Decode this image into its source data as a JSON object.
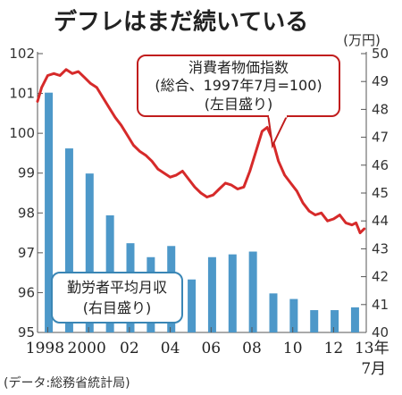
{
  "chart_data": {
    "type": "bar+line",
    "title": "デフレはまだ続いている",
    "right_unit": "(万円)",
    "source": "(データ:総務省統計局)",
    "x_tick_labels": [
      "1998",
      "2000",
      "02",
      "04",
      "06",
      "08",
      "10",
      "12",
      "13年",
      "7月"
    ],
    "left_axis": {
      "min": 95,
      "max": 102,
      "ticks": [
        95,
        96,
        97,
        98,
        99,
        100,
        101,
        102
      ]
    },
    "right_axis": {
      "min": 40,
      "max": 50,
      "ticks": [
        40,
        41,
        42,
        43,
        44,
        45,
        46,
        47,
        48,
        49,
        50
      ]
    },
    "line_series": {
      "name_lines": [
        "消費者物価指数",
        "(総合、1997年7月=100)",
        "(左目盛り)"
      ],
      "color": "#d62a2a",
      "axis": "left",
      "points": [
        [
          1997.5,
          100.8
        ],
        [
          1997.7,
          101.15
        ],
        [
          1998.0,
          101.45
        ],
        [
          1998.3,
          101.5
        ],
        [
          1998.6,
          101.45
        ],
        [
          1998.9,
          101.6
        ],
        [
          1999.2,
          101.5
        ],
        [
          1999.5,
          101.55
        ],
        [
          1999.8,
          101.4
        ],
        [
          2000.1,
          101.25
        ],
        [
          2000.4,
          101.15
        ],
        [
          2000.7,
          100.9
        ],
        [
          2001.0,
          100.65
        ],
        [
          2001.3,
          100.4
        ],
        [
          2001.6,
          100.2
        ],
        [
          2001.9,
          99.95
        ],
        [
          2002.2,
          99.7
        ],
        [
          2002.5,
          99.55
        ],
        [
          2002.8,
          99.45
        ],
        [
          2003.1,
          99.3
        ],
        [
          2003.4,
          99.1
        ],
        [
          2003.7,
          99.0
        ],
        [
          2004.0,
          98.9
        ],
        [
          2004.3,
          98.95
        ],
        [
          2004.6,
          99.05
        ],
        [
          2004.9,
          98.85
        ],
        [
          2005.2,
          98.65
        ],
        [
          2005.5,
          98.5
        ],
        [
          2005.8,
          98.4
        ],
        [
          2006.1,
          98.45
        ],
        [
          2006.4,
          98.6
        ],
        [
          2006.7,
          98.75
        ],
        [
          2007.0,
          98.7
        ],
        [
          2007.3,
          98.6
        ],
        [
          2007.6,
          98.65
        ],
        [
          2007.9,
          99.05
        ],
        [
          2008.2,
          99.55
        ],
        [
          2008.5,
          100.05
        ],
        [
          2008.75,
          100.15
        ],
        [
          2009.0,
          99.85
        ],
        [
          2009.3,
          99.3
        ],
        [
          2009.6,
          98.95
        ],
        [
          2009.9,
          98.75
        ],
        [
          2010.2,
          98.55
        ],
        [
          2010.5,
          98.25
        ],
        [
          2010.8,
          98.05
        ],
        [
          2011.1,
          97.95
        ],
        [
          2011.4,
          98.0
        ],
        [
          2011.7,
          97.8
        ],
        [
          2012.0,
          97.85
        ],
        [
          2012.3,
          97.95
        ],
        [
          2012.6,
          97.75
        ],
        [
          2012.9,
          97.7
        ],
        [
          2013.1,
          97.75
        ],
        [
          2013.3,
          97.5
        ],
        [
          2013.5,
          97.6
        ]
      ]
    },
    "bar_series": {
      "name_lines": [
        "勤労者平均月収",
        "(右目盛り)"
      ],
      "color": "#4d98c9",
      "axis": "right",
      "x": [
        1998,
        1999,
        2000,
        2001,
        2002,
        2003,
        2004,
        2005,
        2006,
        2007,
        2008,
        2009,
        2010,
        2011,
        2012,
        2013
      ],
      "values": [
        48.6,
        46.6,
        45.7,
        44.2,
        43.2,
        42.7,
        43.1,
        41.9,
        42.7,
        42.8,
        42.9,
        41.4,
        41.2,
        40.8,
        40.8,
        40.9
      ]
    }
  }
}
